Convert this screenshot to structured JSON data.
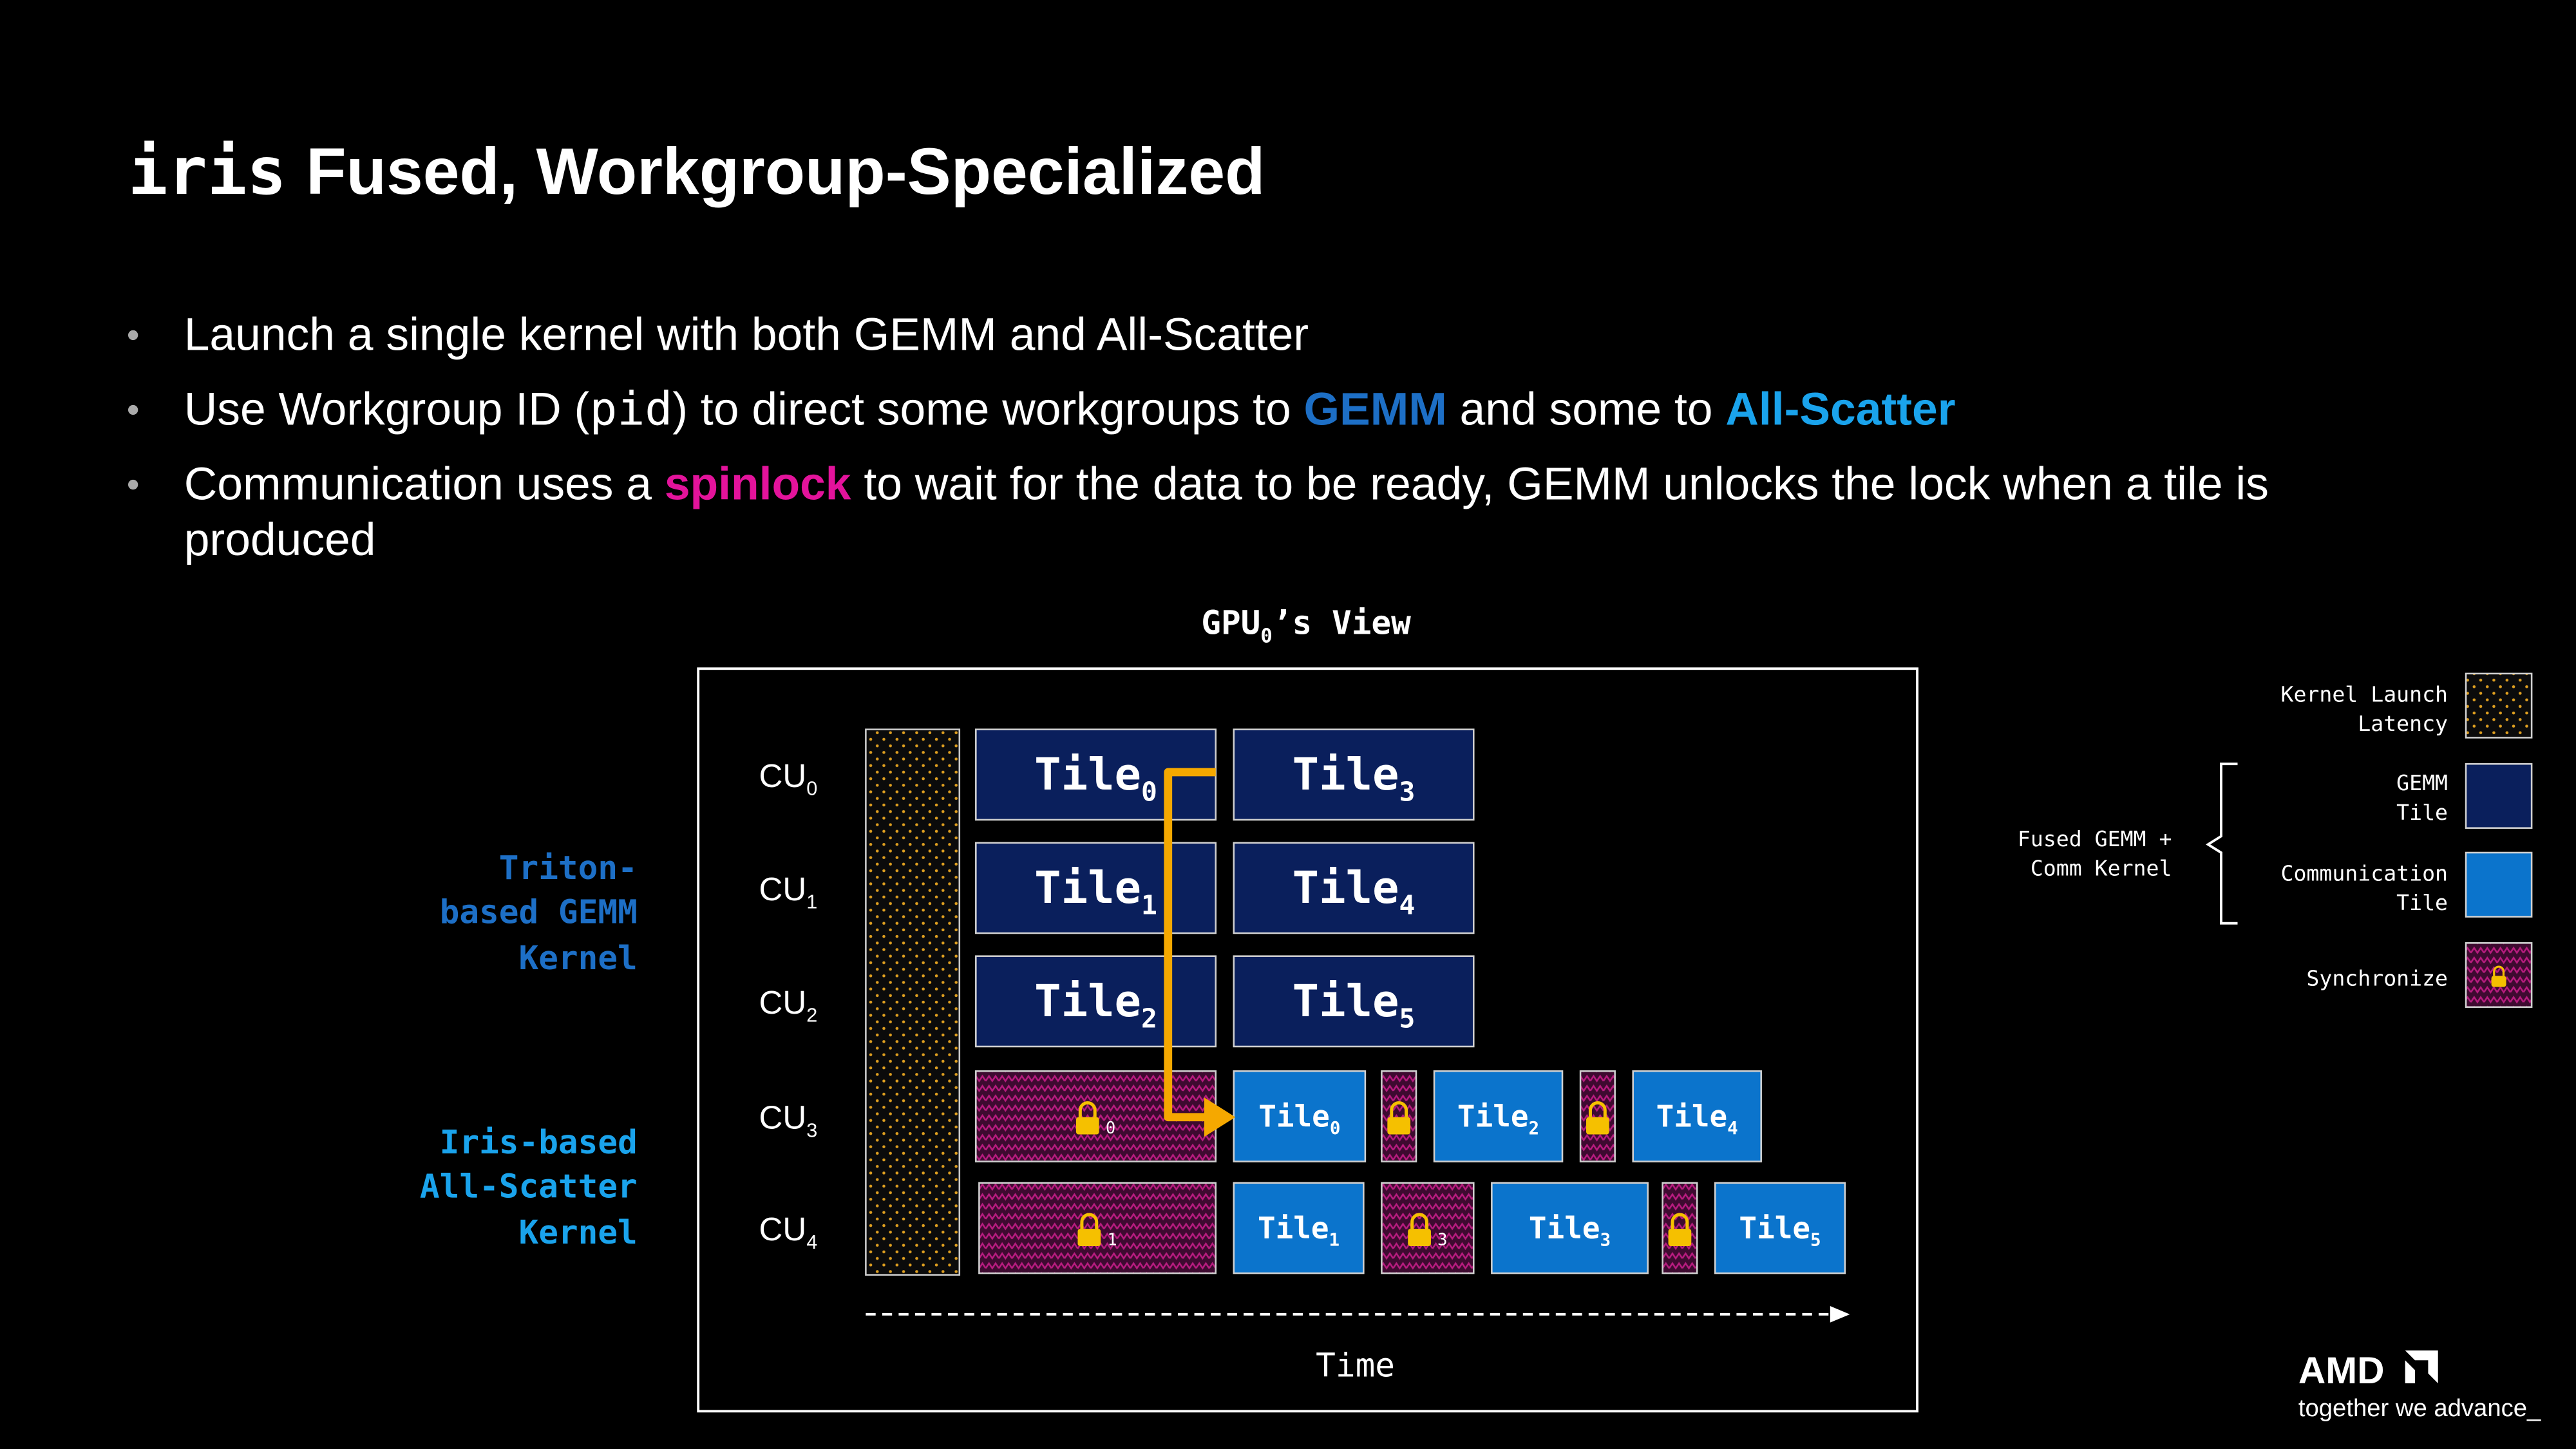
{
  "title": {
    "code": "iris",
    "text": "Fused, Workgroup-Specialized"
  },
  "bullets": [
    [
      [
        {
          "text": "Launch a single kernel with both GEMM and All-Scatter"
        }
      ]
    ],
    [
      [
        {
          "text": "Use Workgroup ID ("
        },
        {
          "text": "pid",
          "font": "mono"
        },
        {
          "text": ") to direct some workgroups to "
        },
        {
          "text": "GEMM",
          "bold": true,
          "color": "#1d6fc6"
        },
        {
          "text": " and some to "
        },
        {
          "text": "All-Scatter",
          "bold": true,
          "color": "#1aa3ec"
        }
      ]
    ],
    [
      [
        {
          "text": "Communication uses a "
        },
        {
          "text": "spinlock",
          "bold": true,
          "color": "#e3139b"
        },
        {
          "text": " to wait for the data to be ready, GEMM unlocks the lock when a tile is"
        }
      ],
      [
        {
          "text": "produced"
        }
      ]
    ]
  ],
  "diagram": {
    "view_title": {
      "text": "GPU",
      "sub": "0",
      "suffix": "’s View"
    },
    "cu_labels": [
      {
        "text": "CU",
        "sub": "0"
      },
      {
        "text": "CU",
        "sub": "1"
      },
      {
        "text": "CU",
        "sub": "2"
      },
      {
        "text": "CU",
        "sub": "3"
      },
      {
        "text": "CU",
        "sub": "4"
      }
    ],
    "groups": [
      {
        "lines": [
          "Triton-",
          "based GEMM",
          "Kernel"
        ],
        "color": "#1d6fc6"
      },
      {
        "lines": [
          "Iris-based",
          "All-Scatter",
          "Kernel"
        ],
        "color": "#1aa3ec"
      }
    ],
    "rows": [
      [
        {
          "kind": "gemm",
          "text": "Tile",
          "sub": "0"
        },
        {
          "kind": "gemm",
          "text": "Tile",
          "sub": "3"
        }
      ],
      [
        {
          "kind": "gemm",
          "text": "Tile",
          "sub": "1"
        },
        {
          "kind": "gemm",
          "text": "Tile",
          "sub": "4"
        }
      ],
      [
        {
          "kind": "gemm",
          "text": "Tile",
          "sub": "2"
        },
        {
          "kind": "gemm",
          "text": "Tile",
          "sub": "5"
        }
      ],
      [
        {
          "kind": "sync",
          "sub": "0"
        },
        {
          "kind": "comm",
          "text": "Tile",
          "sub": "0"
        },
        {
          "kind": "sync"
        },
        {
          "kind": "comm",
          "text": "Tile",
          "sub": "2"
        },
        {
          "kind": "sync"
        },
        {
          "kind": "comm",
          "text": "Tile",
          "sub": "4"
        }
      ],
      [
        {
          "kind": "sync",
          "sub": "1"
        },
        {
          "kind": "comm",
          "text": "Tile",
          "sub": "1"
        },
        {
          "kind": "sync",
          "sub": "3"
        },
        {
          "kind": "comm",
          "text": "Tile",
          "sub": "3"
        },
        {
          "kind": "sync"
        },
        {
          "kind": "comm",
          "text": "Tile",
          "sub": "5"
        }
      ]
    ],
    "time_label": "Time"
  },
  "legend": {
    "items": [
      {
        "lines": [
          "Kernel Launch",
          "Latency"
        ],
        "kind": "launch"
      },
      {
        "lines": [
          "GEMM",
          "Tile"
        ],
        "kind": "gemm"
      },
      {
        "lines": [
          "Communication",
          "Tile"
        ],
        "kind": "comm"
      },
      {
        "lines": [
          "Synchronize"
        ],
        "kind": "sync"
      }
    ],
    "brace_label": [
      "Fused GEMM +",
      "Comm Kernel"
    ]
  },
  "logo": {
    "brand": "AMD",
    "tagline": "together we advance_"
  }
}
